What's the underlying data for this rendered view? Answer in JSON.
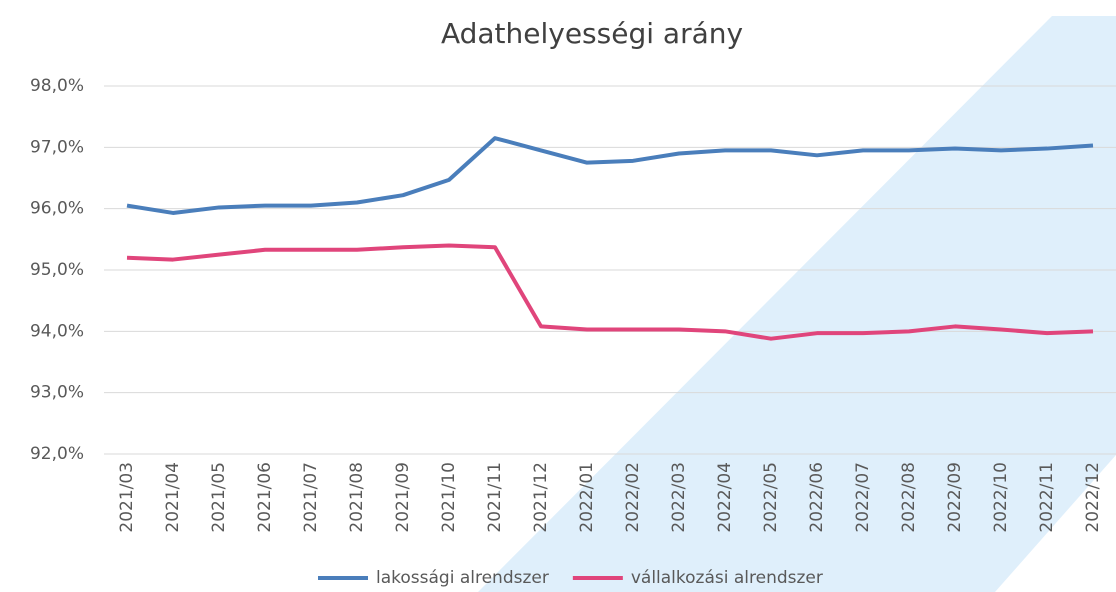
{
  "chart_data": {
    "type": "line",
    "title": "Adathelyességi arány",
    "categories": [
      "2021/03",
      "2021/04",
      "2021/05",
      "2021/06",
      "2021/07",
      "2021/08",
      "2021/09",
      "2021/10",
      "2021/11",
      "2021/12",
      "2022/01",
      "2022/02",
      "2022/03",
      "2022/04",
      "2022/05",
      "2022/06",
      "2022/07",
      "2022/08",
      "2022/09",
      "2022/10",
      "2022/11",
      "2022/12"
    ],
    "series": [
      {
        "name": "lakossági alrendszer",
        "color": "#4a7ebb",
        "values": [
          96.05,
          95.93,
          96.02,
          96.05,
          96.05,
          96.1,
          96.22,
          96.47,
          97.15,
          96.95,
          96.75,
          96.78,
          96.9,
          96.95,
          96.95,
          96.87,
          96.95,
          96.95,
          96.98,
          96.95,
          96.98,
          97.03
        ]
      },
      {
        "name": "vállalkozási alrendszer",
        "color": "#e0457b",
        "values": [
          95.2,
          95.17,
          95.25,
          95.33,
          95.33,
          95.33,
          95.37,
          95.4,
          95.37,
          94.08,
          94.03,
          94.03,
          94.03,
          94.0,
          93.88,
          93.97,
          93.97,
          94.0,
          94.08,
          94.03,
          93.97,
          94.0
        ]
      }
    ],
    "ylim": [
      92,
      98
    ],
    "yticks": [
      {
        "value": 92,
        "label": "92,0%"
      },
      {
        "value": 93,
        "label": "93,0%"
      },
      {
        "value": 94,
        "label": "94,0%"
      },
      {
        "value": 95,
        "label": "95,0%"
      },
      {
        "value": 96,
        "label": "96,0%"
      },
      {
        "value": 97,
        "label": "97,0%"
      },
      {
        "value": 98,
        "label": "98,0%"
      }
    ],
    "grid": true,
    "legend": "bottom"
  }
}
